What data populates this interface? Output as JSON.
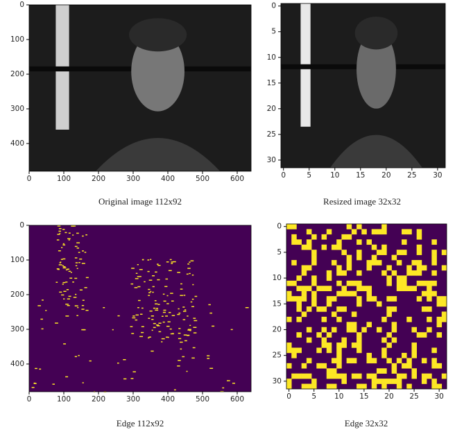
{
  "chart_data": [
    {
      "type": "image",
      "title": "Original image 112x92",
      "colormap": "gray",
      "xlim": [
        0,
        640
      ],
      "ylim": [
        480,
        0
      ],
      "xticks": [
        0,
        100,
        200,
        300,
        400,
        500,
        600
      ],
      "yticks": [
        0,
        100,
        200,
        300,
        400
      ]
    },
    {
      "type": "image",
      "title": "Resized image 32x32",
      "colormap": "gray",
      "xlim": [
        -0.5,
        31.5
      ],
      "ylim": [
        31.5,
        -0.5
      ],
      "xticks": [
        0,
        5,
        10,
        15,
        20,
        25,
        30
      ],
      "yticks": [
        0,
        5,
        10,
        15,
        20,
        25,
        30
      ]
    },
    {
      "type": "image",
      "title": "Edge 112x92",
      "colormap": "viridis",
      "xlim": [
        0,
        640
      ],
      "ylim": [
        480,
        0
      ],
      "xticks": [
        0,
        100,
        200,
        300,
        400,
        500,
        600
      ],
      "yticks": [
        0,
        100,
        200,
        300,
        400
      ]
    },
    {
      "type": "image",
      "title": "Edge 32x32",
      "colormap": "viridis",
      "xlim": [
        -0.5,
        31.5
      ],
      "ylim": [
        31.5,
        -0.5
      ],
      "xticks": [
        0,
        5,
        10,
        15,
        20,
        25,
        30
      ],
      "yticks": [
        0,
        5,
        10,
        15,
        20,
        25,
        30
      ]
    }
  ]
}
